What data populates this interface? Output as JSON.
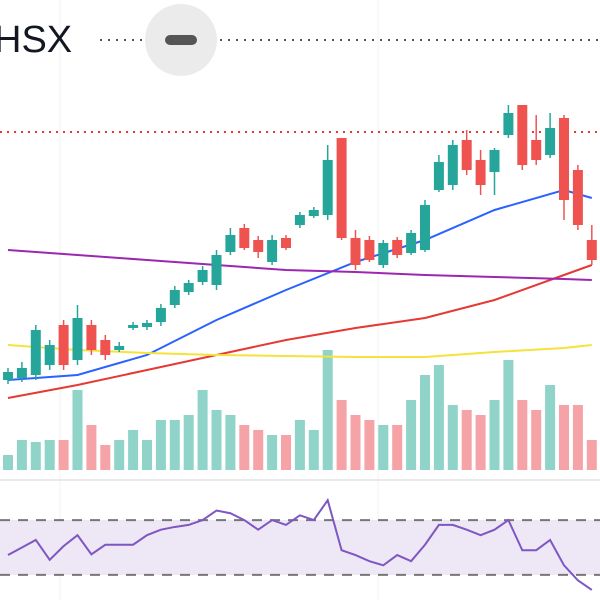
{
  "header": {
    "title": "HSX"
  },
  "chart_data": [
    {
      "type": "candlestick",
      "open": [
        22.0,
        22.2,
        22.5,
        23.5,
        27.5,
        24.0,
        27.5,
        26.0,
        25.0,
        27.2,
        27.3,
        27.8,
        29.5,
        30.8,
        31.8,
        31.5,
        34.8,
        37.2,
        36.0,
        33.8,
        36.2,
        37.5,
        38.4,
        38.5,
        46.2,
        36.2,
        36.0,
        33.5,
        36.0,
        34.7,
        35.0,
        41.0,
        41.5,
        46.0,
        44.0,
        42.8,
        46.5,
        49.5,
        46.0,
        44.5,
        48.2,
        43.0,
        36.0
      ],
      "close": [
        22.8,
        23.2,
        27.0,
        25.5,
        23.5,
        28.2,
        25.0,
        24.5,
        25.4,
        27.5,
        27.7,
        29.2,
        31.0,
        31.7,
        33.0,
        34.5,
        36.5,
        35.2,
        34.8,
        36.0,
        35.2,
        38.5,
        39.0,
        44.0,
        36.2,
        33.5,
        34.0,
        35.7,
        34.5,
        36.7,
        39.5,
        43.8,
        45.5,
        43.0,
        41.5,
        45.0,
        48.7,
        43.5,
        44.0,
        47.2,
        40.0,
        37.5,
        34.0
      ],
      "high": [
        23.2,
        23.8,
        27.5,
        26.0,
        28.0,
        29.5,
        28.0,
        26.5,
        25.8,
        27.8,
        28.0,
        29.6,
        31.4,
        32.0,
        33.4,
        35.0,
        37.2,
        37.6,
        36.4,
        36.5,
        36.5,
        38.8,
        39.3,
        45.5,
        46.2,
        37.0,
        36.4,
        36.0,
        36.3,
        37.0,
        40.0,
        44.5,
        46.0,
        47.0,
        45.0,
        45.2,
        49.5,
        49.5,
        48.5,
        48.7,
        48.5,
        43.5,
        37.5
      ],
      "low": [
        21.6,
        21.8,
        22.0,
        23.0,
        23.0,
        23.5,
        24.5,
        24.0,
        24.8,
        27.0,
        27.0,
        27.4,
        29.2,
        30.5,
        31.5,
        31.0,
        34.5,
        35.0,
        34.2,
        33.5,
        35.0,
        37.2,
        38.2,
        38.0,
        36.0,
        33.0,
        33.8,
        33.2,
        34.2,
        34.5,
        34.8,
        40.8,
        41.0,
        42.5,
        40.5,
        40.5,
        46.2,
        43.0,
        43.5,
        44.2,
        38.0,
        37.0,
        33.5
      ],
      "up_color": "#26a69a",
      "down_color": "#ef5350",
      "ylim": [
        20,
        53
      ],
      "hline": {
        "value": 46.8,
        "color": "#e53935"
      },
      "series": [
        {
          "color": "#2962ff",
          "x": [
            0,
            5,
            10,
            15,
            20,
            25,
            30,
            35,
            40,
            42
          ],
          "values": [
            22.0,
            22.5,
            24.5,
            28.0,
            31.0,
            33.8,
            36.0,
            39.0,
            41.0,
            40.2
          ]
        },
        {
          "color": "#e53935",
          "x": [
            0,
            5,
            10,
            15,
            20,
            25,
            30,
            35,
            40,
            42
          ],
          "values": [
            20.2,
            21.5,
            23.0,
            24.5,
            26.0,
            27.2,
            28.2,
            30.0,
            32.5,
            33.5
          ]
        },
        {
          "color": "#f5e23b",
          "x": [
            0,
            5,
            10,
            15,
            20,
            25,
            30,
            35,
            40,
            42
          ],
          "values": [
            25.5,
            25.0,
            24.7,
            24.5,
            24.4,
            24.3,
            24.3,
            24.8,
            25.2,
            25.5
          ]
        },
        {
          "color": "#9c27b0",
          "x": [
            0,
            5,
            10,
            15,
            20,
            25,
            30,
            35,
            40,
            42
          ],
          "values": [
            35.0,
            34.5,
            34.0,
            33.5,
            33.0,
            32.8,
            32.5,
            32.3,
            32.1,
            32.0
          ]
        }
      ]
    },
    {
      "type": "volume",
      "values": [
        15,
        30,
        28,
        30,
        30,
        80,
        45,
        25,
        30,
        40,
        30,
        50,
        50,
        55,
        80,
        60,
        55,
        45,
        40,
        35,
        35,
        50,
        40,
        120,
        70,
        55,
        50,
        45,
        45,
        70,
        95,
        105,
        65,
        60,
        55,
        70,
        110,
        70,
        60,
        85,
        65,
        65,
        30
      ],
      "up_color": "#8fd3c9",
      "down_color": "#f5a3a7",
      "ylim": [
        0,
        130
      ]
    },
    {
      "type": "line",
      "values": [
        44.5,
        50,
        55.5,
        41,
        51,
        59,
        45,
        52,
        52,
        52,
        59,
        63,
        65,
        66.5,
        70,
        77,
        75,
        70,
        63,
        70,
        66.5,
        73.5,
        70,
        84.5,
        48,
        44.5,
        40,
        37,
        44.5,
        40,
        52,
        66.5,
        66.5,
        63,
        59,
        63,
        70,
        48,
        48,
        55.5,
        37,
        26,
        19
      ],
      "color": "#7e57c2",
      "band_color": "#ede7f6",
      "levels": [
        30,
        70
      ],
      "ylim": [
        0,
        100
      ]
    }
  ]
}
